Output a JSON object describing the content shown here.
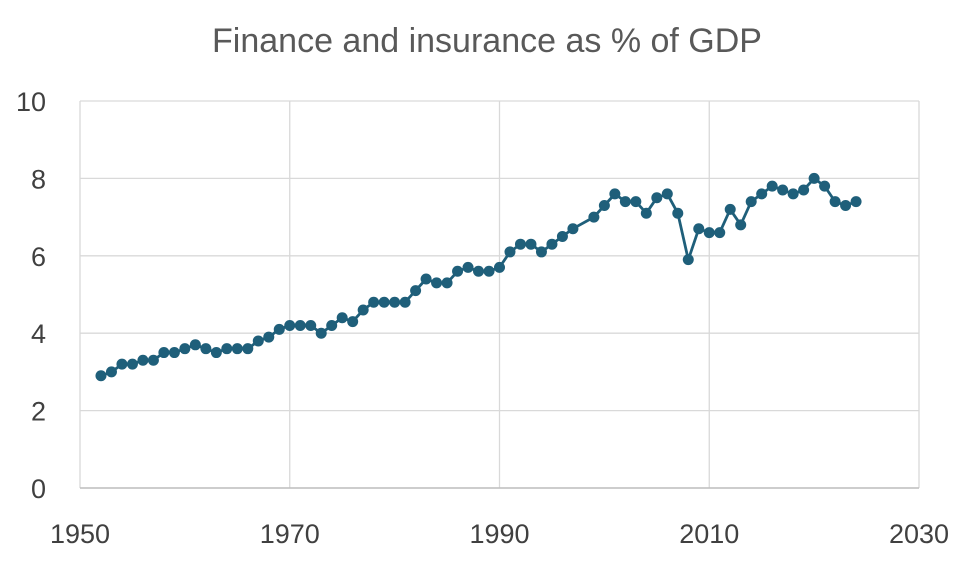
{
  "chart_data": {
    "type": "line",
    "title": "Finance and insurance as % of GDP",
    "xlabel": "",
    "ylabel": "",
    "xlim": [
      1950,
      2030
    ],
    "ylim": [
      0,
      10
    ],
    "x_ticks": [
      "1950",
      "1970",
      "1990",
      "2010",
      "2030"
    ],
    "y_ticks": [
      "0",
      "2",
      "4",
      "6",
      "8",
      "10"
    ],
    "grid": true,
    "legend": "none",
    "series": [
      {
        "color": "#1f5f7a",
        "x": [
          1952,
          1953,
          1954,
          1955,
          1956,
          1957,
          1958,
          1959,
          1960,
          1961,
          1962,
          1963,
          1964,
          1965,
          1966,
          1967,
          1968,
          1969,
          1970,
          1971,
          1972,
          1973,
          1974,
          1975,
          1976,
          1977,
          1978,
          1979,
          1980,
          1981,
          1982,
          1983,
          1984,
          1985,
          1986,
          1987,
          1988,
          1989,
          1990,
          1991,
          1992,
          1993,
          1994,
          1995,
          1996,
          1997,
          1999,
          2000,
          2001,
          2002,
          2003,
          2004,
          2005,
          2006,
          2007,
          2008,
          2009,
          2010,
          2011,
          2012,
          2013,
          2014,
          2015,
          2016,
          2017,
          2018,
          2019,
          2020,
          2021,
          2022,
          2023,
          2024
        ],
        "y": [
          2.9,
          3.0,
          3.2,
          3.2,
          3.3,
          3.3,
          3.5,
          3.5,
          3.6,
          3.7,
          3.6,
          3.5,
          3.6,
          3.6,
          3.6,
          3.8,
          3.9,
          4.1,
          4.2,
          4.2,
          4.2,
          4.0,
          4.2,
          4.4,
          4.3,
          4.6,
          4.8,
          4.8,
          4.8,
          4.8,
          5.1,
          5.4,
          5.3,
          5.3,
          5.6,
          5.7,
          5.6,
          5.6,
          5.7,
          6.1,
          6.3,
          6.3,
          6.1,
          6.3,
          6.5,
          6.7,
          7.0,
          7.3,
          7.6,
          7.4,
          7.4,
          7.1,
          7.5,
          7.6,
          7.1,
          5.9,
          6.7,
          6.6,
          6.6,
          7.2,
          6.8,
          7.4,
          7.6,
          7.8,
          7.7,
          7.6,
          7.7,
          8.0,
          7.8,
          7.4,
          7.3,
          7.4
        ]
      }
    ]
  }
}
